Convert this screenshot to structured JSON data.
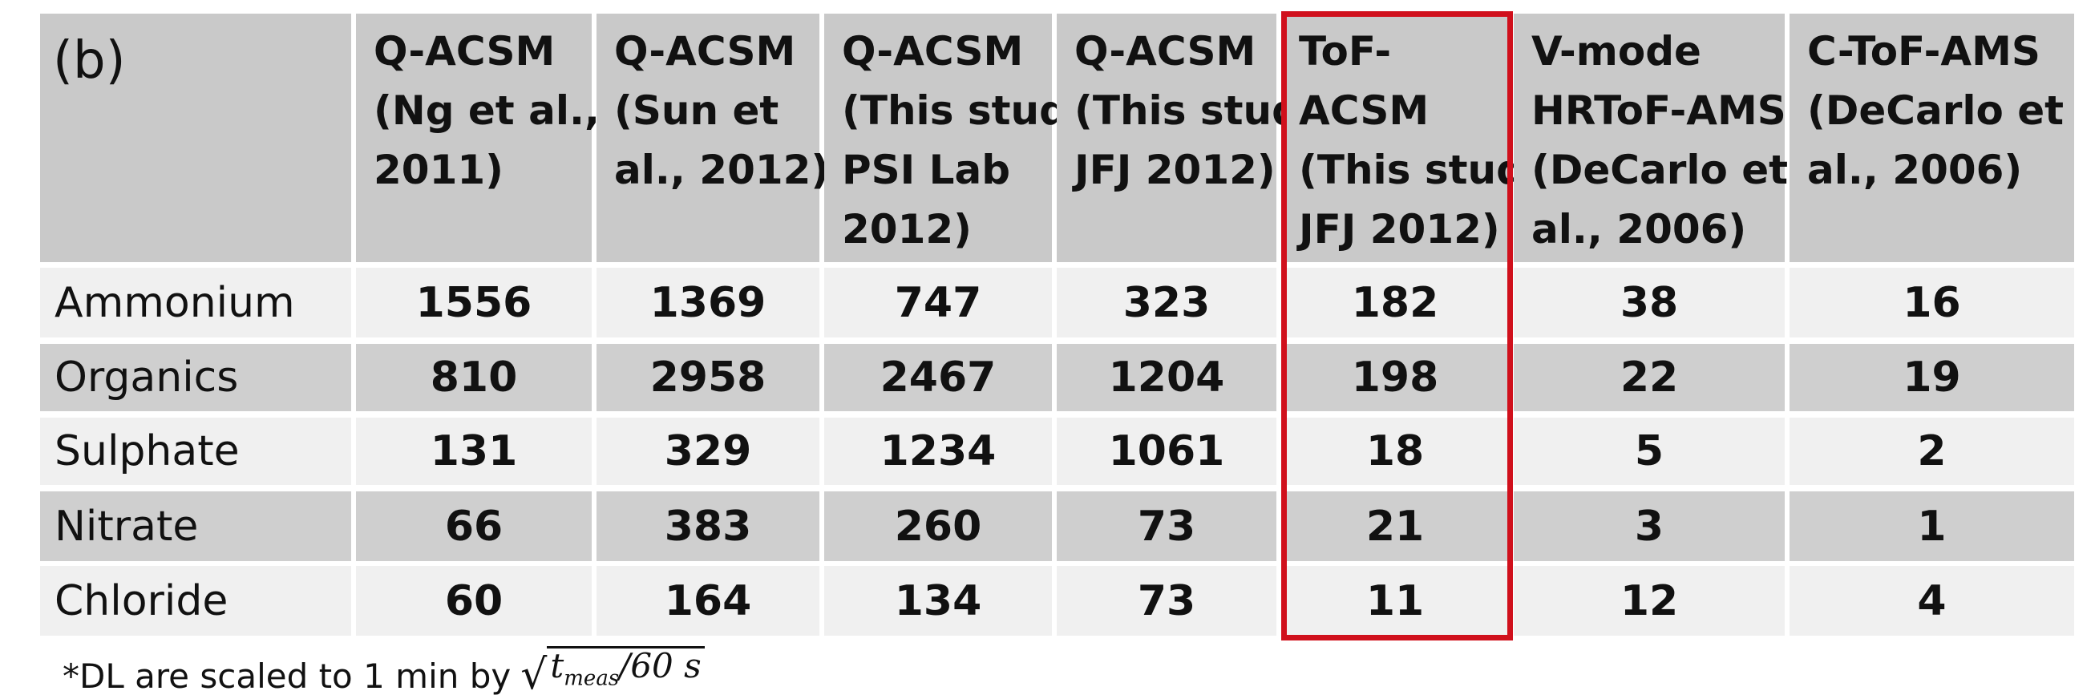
{
  "table": {
    "header": [
      "(b)",
      [
        "Q-ACSM",
        "(Ng et al.,",
        "2011)"
      ],
      [
        "Q-ACSM",
        "(Sun et",
        "al., 2012)"
      ],
      [
        "Q-ACSM",
        "(This study",
        "PSI Lab",
        "2012)"
      ],
      [
        "Q-ACSM",
        "(This study",
        "JFJ 2012)"
      ],
      [
        "ToF-",
        "ACSM",
        "(This study",
        "JFJ 2012)"
      ],
      [
        "V-mode",
        "HRToF-AMS",
        "(DeCarlo et",
        "al., 2006)"
      ],
      [
        "C-ToF-AMS",
        "(DeCarlo et",
        "al., 2006)"
      ]
    ],
    "rows": [
      [
        "Ammonium",
        1556,
        1369,
        747,
        323,
        182,
        38,
        16
      ],
      [
        "Organics",
        810,
        2958,
        2467,
        1204,
        198,
        22,
        19
      ],
      [
        "Sulphate",
        131,
        329,
        1234,
        1061,
        18,
        5,
        2
      ],
      [
        "Nitrate",
        66,
        383,
        260,
        73,
        21,
        3,
        1
      ],
      [
        "Chloride",
        60,
        164,
        134,
        73,
        11,
        12,
        4
      ]
    ]
  },
  "footnote": {
    "text": "*DL are scaled to 1 min by",
    "base": "t",
    "subscript": "meas",
    "rest": "/60 s"
  }
}
